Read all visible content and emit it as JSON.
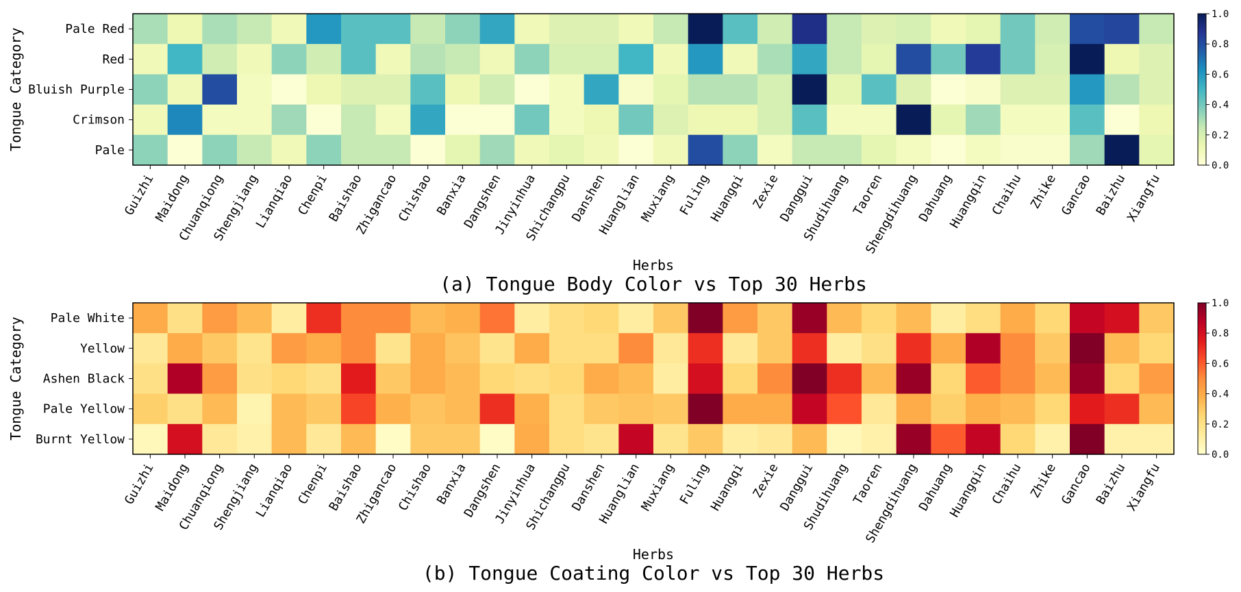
{
  "herbs": [
    "Guizhi",
    "Maidong",
    "Chuanqiong",
    "Shengjiang",
    "Lianqiao",
    "Chenpi",
    "Baishao",
    "Zhigancao",
    "Chishao",
    "Banxia",
    "Dangshen",
    "Jinyinhua",
    "Shichangpu",
    "Danshen",
    "Huanglian",
    "Muxiang",
    "Fuling",
    "Huangqi",
    "Zexie",
    "Danggui",
    "Shudihuang",
    "Taoren",
    "Shengdihuang",
    "Dahuang",
    "Huangqin",
    "Chaihu",
    "Zhike",
    "Gancao",
    "Baizhu",
    "Xiangfu"
  ],
  "colorscale_a": [
    "#ffffd9",
    "#edf8b1",
    "#c7e9b4",
    "#7fcdbb",
    "#41b6c4",
    "#1d91c0",
    "#225ea8",
    "#253494",
    "#081d58"
  ],
  "colorscale_b": [
    "#ffffcc",
    "#ffeda0",
    "#fed976",
    "#feb24c",
    "#fd8d3c",
    "#fc4e2a",
    "#e31a1c",
    "#bd0026",
    "#800026"
  ],
  "chart_data": [
    {
      "type": "heatmap",
      "title": "(a) Tongue Body Color vs Top 30 Herbs",
      "xlabel": "Herbs",
      "ylabel": "Tongue Category",
      "rows": [
        "Pale Red",
        "Red",
        "Bluish Purple",
        "Crimson",
        "Pale"
      ],
      "colorbar_ticks": [
        "0.0",
        "0.2",
        "0.4",
        "0.6",
        "0.8",
        "1.0"
      ],
      "vmin": 0,
      "vmax": 1,
      "values": [
        [
          0.3,
          0.12,
          0.3,
          0.25,
          0.1,
          0.6,
          0.45,
          0.45,
          0.25,
          0.35,
          0.55,
          0.1,
          0.18,
          0.18,
          0.1,
          0.25,
          1.0,
          0.45,
          0.22,
          0.9,
          0.25,
          0.18,
          0.2,
          0.1,
          0.15,
          0.4,
          0.22,
          0.8,
          0.82,
          0.25
        ],
        [
          0.1,
          0.5,
          0.22,
          0.1,
          0.35,
          0.22,
          0.45,
          0.1,
          0.28,
          0.25,
          0.1,
          0.35,
          0.2,
          0.2,
          0.5,
          0.1,
          0.6,
          0.1,
          0.3,
          0.55,
          0.25,
          0.15,
          0.8,
          0.4,
          0.85,
          0.4,
          0.2,
          1.0,
          0.12,
          0.18
        ],
        [
          0.35,
          0.1,
          0.8,
          0.08,
          0.02,
          0.12,
          0.18,
          0.18,
          0.45,
          0.12,
          0.22,
          0.02,
          0.08,
          0.55,
          0.05,
          0.15,
          0.28,
          0.28,
          0.2,
          1.0,
          0.15,
          0.45,
          0.18,
          0.02,
          0.05,
          0.18,
          0.18,
          0.6,
          0.28,
          0.18
        ],
        [
          0.1,
          0.65,
          0.08,
          0.08,
          0.32,
          0.02,
          0.25,
          0.08,
          0.55,
          0.02,
          0.02,
          0.4,
          0.08,
          0.12,
          0.4,
          0.18,
          0.12,
          0.12,
          0.2,
          0.45,
          0.08,
          0.08,
          1.0,
          0.15,
          0.32,
          0.08,
          0.08,
          0.45,
          0.02,
          0.12
        ],
        [
          0.35,
          0.02,
          0.35,
          0.25,
          0.1,
          0.35,
          0.25,
          0.25,
          0.02,
          0.15,
          0.32,
          0.1,
          0.15,
          0.1,
          0.02,
          0.1,
          0.8,
          0.35,
          0.08,
          0.25,
          0.25,
          0.15,
          0.08,
          0.02,
          0.08,
          0.04,
          0.04,
          0.32,
          1.0,
          0.15
        ]
      ]
    },
    {
      "type": "heatmap",
      "title": "(b) Tongue Coating Color vs Top 30 Herbs",
      "xlabel": "Herbs",
      "ylabel": "Tongue Category",
      "rows": [
        "Pale White",
        "Yellow",
        "Ashen Black",
        "Pale Yellow",
        "Burnt Yellow"
      ],
      "colorbar_ticks": [
        "0.0",
        "0.2",
        "0.4",
        "0.6",
        "0.8",
        "1.0"
      ],
      "vmin": 0,
      "vmax": 1,
      "values": [
        [
          0.4,
          0.2,
          0.45,
          0.35,
          0.12,
          0.7,
          0.5,
          0.5,
          0.35,
          0.38,
          0.55,
          0.12,
          0.22,
          0.25,
          0.12,
          0.3,
          1.0,
          0.45,
          0.3,
          0.95,
          0.35,
          0.25,
          0.35,
          0.12,
          0.22,
          0.4,
          0.25,
          0.85,
          0.8,
          0.3
        ],
        [
          0.15,
          0.4,
          0.3,
          0.18,
          0.45,
          0.4,
          0.5,
          0.18,
          0.4,
          0.32,
          0.18,
          0.4,
          0.22,
          0.22,
          0.5,
          0.15,
          0.7,
          0.15,
          0.3,
          0.7,
          0.12,
          0.2,
          0.7,
          0.4,
          0.9,
          0.5,
          0.3,
          1.0,
          0.35,
          0.25
        ],
        [
          0.2,
          0.9,
          0.45,
          0.2,
          0.25,
          0.2,
          0.75,
          0.3,
          0.4,
          0.35,
          0.25,
          0.22,
          0.25,
          0.4,
          0.35,
          0.12,
          0.8,
          0.25,
          0.5,
          1.0,
          0.7,
          0.35,
          0.95,
          0.25,
          0.6,
          0.5,
          0.35,
          0.95,
          0.25,
          0.45
        ],
        [
          0.28,
          0.2,
          0.35,
          0.08,
          0.35,
          0.3,
          0.65,
          0.38,
          0.32,
          0.35,
          0.7,
          0.38,
          0.22,
          0.3,
          0.32,
          0.3,
          1.0,
          0.4,
          0.4,
          0.85,
          0.62,
          0.15,
          0.4,
          0.28,
          0.38,
          0.35,
          0.25,
          0.75,
          0.7,
          0.35
        ],
        [
          0.05,
          0.8,
          0.15,
          0.1,
          0.35,
          0.15,
          0.35,
          0.02,
          0.3,
          0.3,
          0.02,
          0.4,
          0.22,
          0.18,
          0.85,
          0.18,
          0.3,
          0.12,
          0.15,
          0.35,
          0.05,
          0.1,
          0.95,
          0.6,
          0.85,
          0.25,
          0.1,
          1.0,
          0.1,
          0.1
        ]
      ]
    }
  ]
}
